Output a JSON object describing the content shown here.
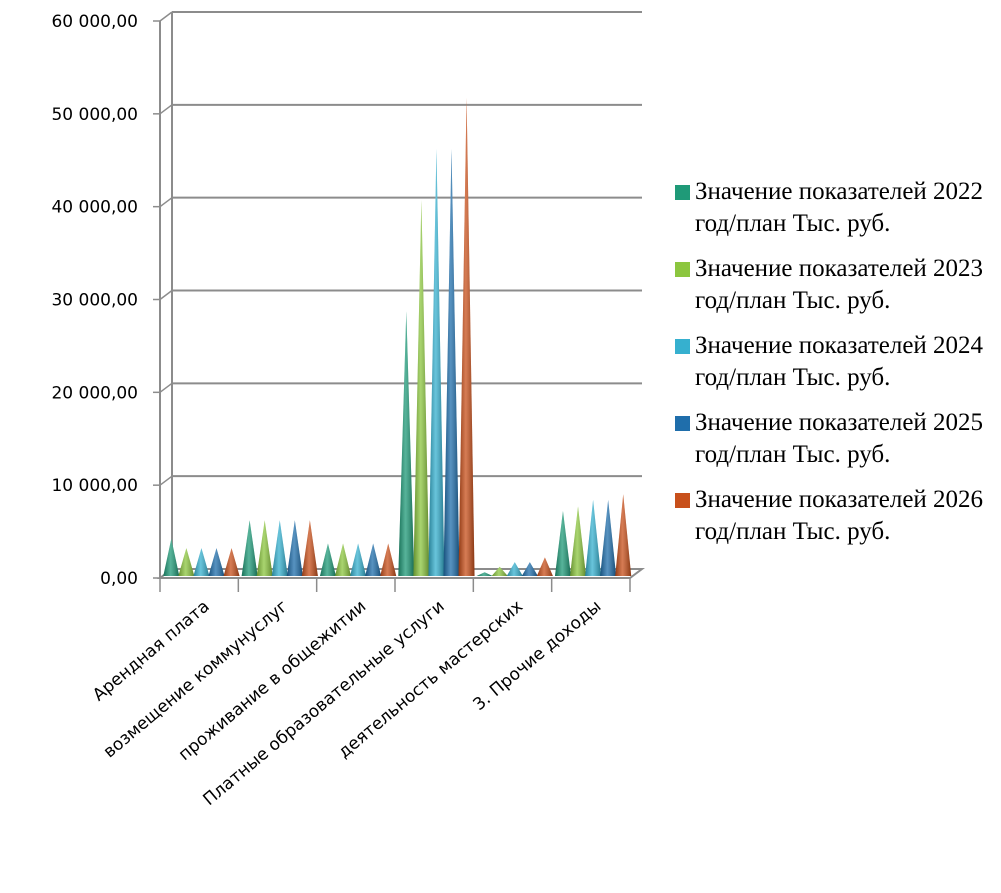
{
  "chart_data": {
    "type": "bar",
    "style": "3d-cone",
    "categories": [
      "Арендная плата",
      "возмещение коммунуслуг",
      "проживание в общежитии",
      "Платные образовательные услуги",
      "деятельность мастерских",
      "3. Прочие доходы"
    ],
    "series": [
      {
        "name": "Значение показателей 2022 год/план Тыс. руб.",
        "color": "#1f9a78",
        "values": [
          4000,
          6000,
          3500,
          28500,
          400,
          7000
        ]
      },
      {
        "name": "Значение показателей 2023 год/план Тыс. руб.",
        "color": "#8cc63f",
        "values": [
          3000,
          6000,
          3500,
          40500,
          1000,
          7500
        ]
      },
      {
        "name": "Значение показателей 2024 год/план Тыс. руб.",
        "color": "#36b0cf",
        "values": [
          3000,
          6000,
          3500,
          46000,
          1500,
          8200
        ]
      },
      {
        "name": "Значение показателей 2025 год/план Тыс. руб.",
        "color": "#1f6eab",
        "values": [
          3000,
          6000,
          3500,
          46000,
          1500,
          8200
        ]
      },
      {
        "name": "Значение показателей 2026 год/план Тыс. руб.",
        "color": "#c8501b",
        "values": [
          3000,
          6000,
          3500,
          51500,
          2000,
          8800
        ]
      }
    ],
    "yticks": [
      "0,00",
      "10 000,00",
      "20 000,00",
      "30 000,00",
      "40 000,00",
      "50 000,00",
      "60 000,00"
    ],
    "ylim": [
      0,
      60000
    ],
    "grid": true,
    "legend_position": "right"
  }
}
